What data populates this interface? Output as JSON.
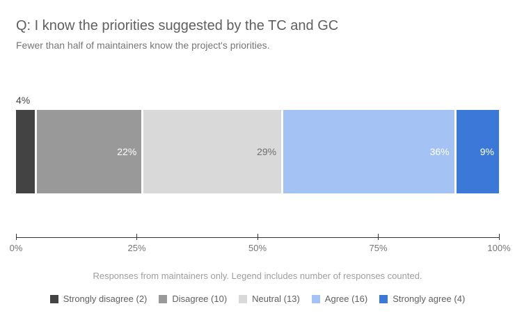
{
  "chart_data": {
    "type": "bar",
    "stacked": true,
    "orientation": "horizontal",
    "title": "Q: I know the priorities suggested by the TC and GC",
    "subtitle": "Fewer than half of maintainers know the project's priorities.",
    "footnote": "Responses from maintainers only. Legend includes number of responses counted.",
    "series": [
      {
        "name": "Strongly disagree",
        "responses": 2,
        "percent": 4,
        "color": "#434343",
        "bar_label": "4%",
        "bar_label_position": "above-bar",
        "bar_label_color": "#434343",
        "legend_label": "Strongly disagree (2)"
      },
      {
        "name": "Disagree",
        "responses": 10,
        "percent": 22,
        "color": "#999999",
        "bar_label": "22%",
        "bar_label_position": "inside-right",
        "bar_label_color": "#ffffff",
        "legend_label": "Disagree (10)"
      },
      {
        "name": "Neutral",
        "responses": 13,
        "percent": 29,
        "color": "#d9d9d9",
        "bar_label": "29%",
        "bar_label_position": "inside-right",
        "bar_label_color": "#6e6e6e",
        "legend_label": "Neutral (13)"
      },
      {
        "name": "Agree",
        "responses": 16,
        "percent": 36,
        "color": "#a4c2f4",
        "bar_label": "36%",
        "bar_label_position": "inside-right",
        "bar_label_color": "#ffffff",
        "legend_label": "Agree (16)"
      },
      {
        "name": "Strongly agree",
        "responses": 4,
        "percent": 9,
        "color": "#3c78d8",
        "bar_label": "9%",
        "bar_label_position": "inside-right",
        "bar_label_color": "#ffffff",
        "legend_label": "Strongly agree (4)"
      }
    ],
    "x_axis": {
      "range": [
        0,
        100
      ],
      "tick_positions": [
        0,
        25,
        50,
        75,
        100
      ],
      "tick_labels": [
        "0%",
        "25%",
        "50%",
        "75%",
        "100%"
      ],
      "line_color": "#333333",
      "tick_label_color": "#757575"
    },
    "legend": {
      "position": "bottom"
    },
    "grid": false,
    "background_color": "#ffffff"
  }
}
